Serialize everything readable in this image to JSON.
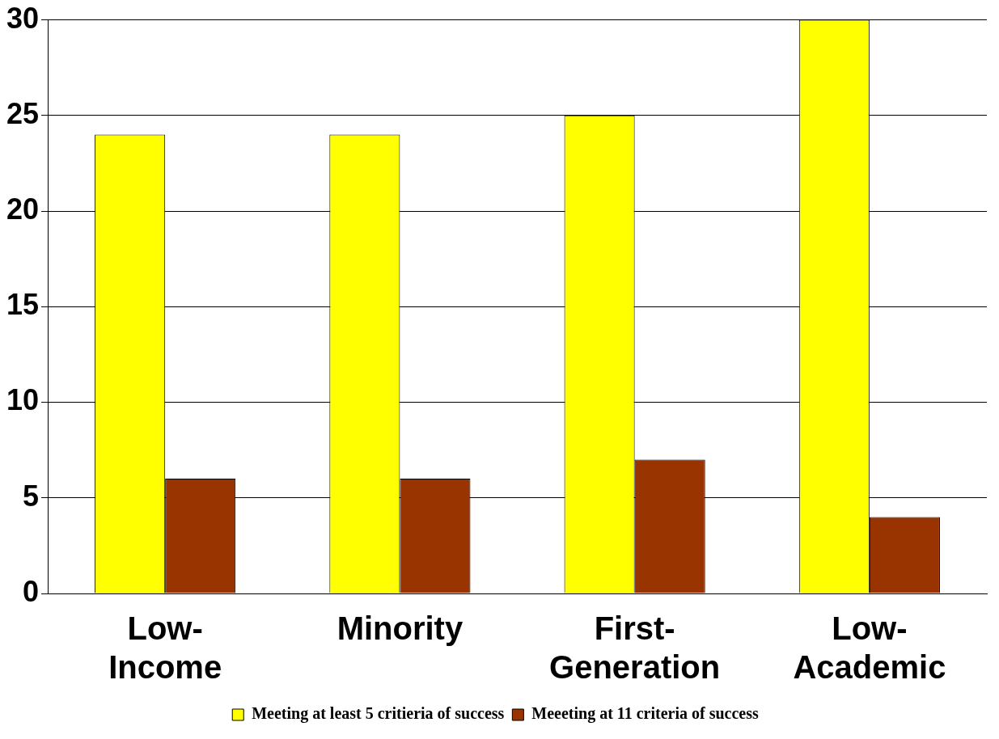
{
  "chart_data": {
    "type": "bar",
    "categories": [
      "Low-Income",
      "Minority",
      "First-Generation",
      "Low-Academic"
    ],
    "series": [
      {
        "name": "Meeting at least 5 critieria of success",
        "color": "#ffff00",
        "values": [
          24,
          24,
          25,
          30
        ]
      },
      {
        "name": "Meeeting at 11 criteria of success",
        "color": "#993300",
        "values": [
          6,
          6,
          7,
          4
        ]
      }
    ],
    "ylim": [
      0,
      30
    ],
    "yticks": [
      0,
      5,
      10,
      15,
      20,
      25,
      30
    ],
    "grid": "y",
    "legend": "bottom"
  }
}
